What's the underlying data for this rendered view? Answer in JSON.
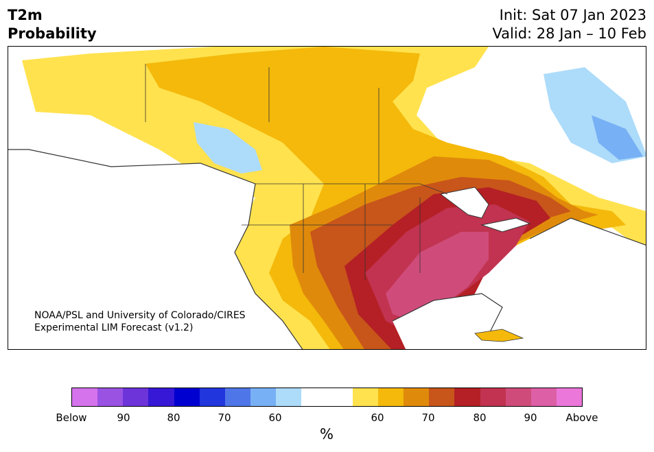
{
  "header": {
    "variable": "T2m",
    "product": "Probability",
    "init": "Init: Sat 07 Jan 2023",
    "valid": "Valid: 28 Jan – 10 Feb"
  },
  "credit": {
    "line1": "NOAA/PSL and University of Colorado/CIRES",
    "line2": "Experimental LIM Forecast (v1.2)"
  },
  "colorbar": {
    "colors": [
      "#d573ec",
      "#9a52e3",
      "#6c34d9",
      "#3718d6",
      "#0000d1",
      "#2136dc",
      "#4f76e8",
      "#77b0f4",
      "#addbfa",
      "#ffffff",
      "#ffffff",
      "#ffe24e",
      "#f4b90b",
      "#e08a0b",
      "#c8551a",
      "#b42025",
      "#c13350",
      "#cf4c7a",
      "#dd5fa6",
      "#ea77d9"
    ],
    "ticks": [
      "Below",
      "90",
      "80",
      "70",
      "60",
      "60",
      "70",
      "80",
      "90",
      "Above"
    ],
    "unit": "%"
  },
  "map": {
    "land": "#ffffff",
    "border": "#333333",
    "categories": [
      "Below",
      "60",
      "70",
      "80",
      "90",
      "Above"
    ]
  }
}
